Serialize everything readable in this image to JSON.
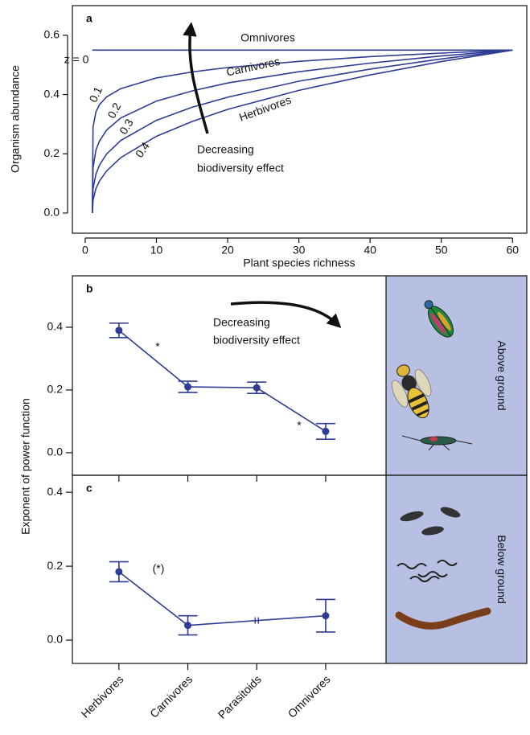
{
  "chart_data": [
    {
      "type": "line",
      "label": "a",
      "xlabel": "Plant species richness",
      "ylabel": "Organism abundance",
      "x": [
        1,
        1.1,
        1.5,
        2,
        3,
        5,
        10,
        15,
        20,
        30,
        40,
        50,
        60
      ],
      "series": [
        {
          "name": "z = 0",
          "color": "#2e3d94",
          "values": [
            0.55,
            0.55,
            0.55,
            0.55,
            0.55,
            0.55,
            0.55,
            0.55,
            0.55,
            0.55,
            0.55,
            0.55,
            0.55
          ]
        },
        {
          "name": "0.1",
          "color": "#2e3d94",
          "values": [
            0,
            0.29,
            0.341,
            0.366,
            0.392,
            0.42,
            0.456,
            0.476,
            0.491,
            0.512,
            0.528,
            0.54,
            0.55
          ]
        },
        {
          "name": "0.2",
          "color": "#2e3d94",
          "values": [
            0,
            0.153,
            0.212,
            0.243,
            0.28,
            0.321,
            0.378,
            0.412,
            0.439,
            0.477,
            0.506,
            0.53,
            0.55
          ]
        },
        {
          "name": "0.3",
          "color": "#2e3d94",
          "values": [
            0,
            0.081,
            0.131,
            0.162,
            0.199,
            0.245,
            0.313,
            0.357,
            0.391,
            0.445,
            0.486,
            0.52,
            0.55
          ]
        },
        {
          "name": "0.4",
          "color": "#2e3d94",
          "values": [
            0,
            0.043,
            0.082,
            0.108,
            0.142,
            0.187,
            0.259,
            0.309,
            0.35,
            0.414,
            0.466,
            0.511,
            0.55
          ]
        }
      ],
      "xlim": [
        -1.8,
        62
      ],
      "ylim": [
        -0.068,
        0.7
      ],
      "xticks": [
        0,
        10,
        20,
        30,
        40,
        50,
        60
      ],
      "yticks": [
        {
          "value": 0,
          "label": "0.0"
        },
        0.2,
        0.4,
        0.6
      ],
      "annotations": [
        "Omnivores",
        "Carnivores",
        "Herbivores",
        "Decreasing",
        "biodiversity effect"
      ]
    },
    {
      "type": "errorbar",
      "ylabel": "Exponent of power function",
      "color": "#2e3d94",
      "panel_color": "#b7c0e3",
      "categories": [
        "Herbivores",
        "Carnivores",
        "Parasitoids",
        "Omnivores"
      ],
      "panels": [
        {
          "label": "b",
          "values": [
            0.39,
            0.21,
            0.207,
            0.068
          ],
          "errors": [
            0.023,
            0.018,
            0.018,
            0.025
          ],
          "ylim": [
            -0.072,
            0.564
          ],
          "yticks": [
            {
              "value": 0,
              "label": "0.0"
            },
            0.2,
            0.4
          ],
          "side_label": "Above ground",
          "annotations": [
            "*",
            "*",
            "Decreasing",
            "biodiversity effect"
          ]
        },
        {
          "label": "c",
          "values": [
            0.185,
            0.04,
            null,
            0.066
          ],
          "errors": [
            0.027,
            0.026,
            null,
            0.044
          ],
          "ylim": [
            -0.063,
            0.446
          ],
          "yticks": [
            {
              "value": 0,
              "label": "0.0"
            },
            0.2,
            0.4
          ],
          "side_label": "Below ground",
          "annotations": [
            "(*)"
          ]
        }
      ]
    }
  ]
}
